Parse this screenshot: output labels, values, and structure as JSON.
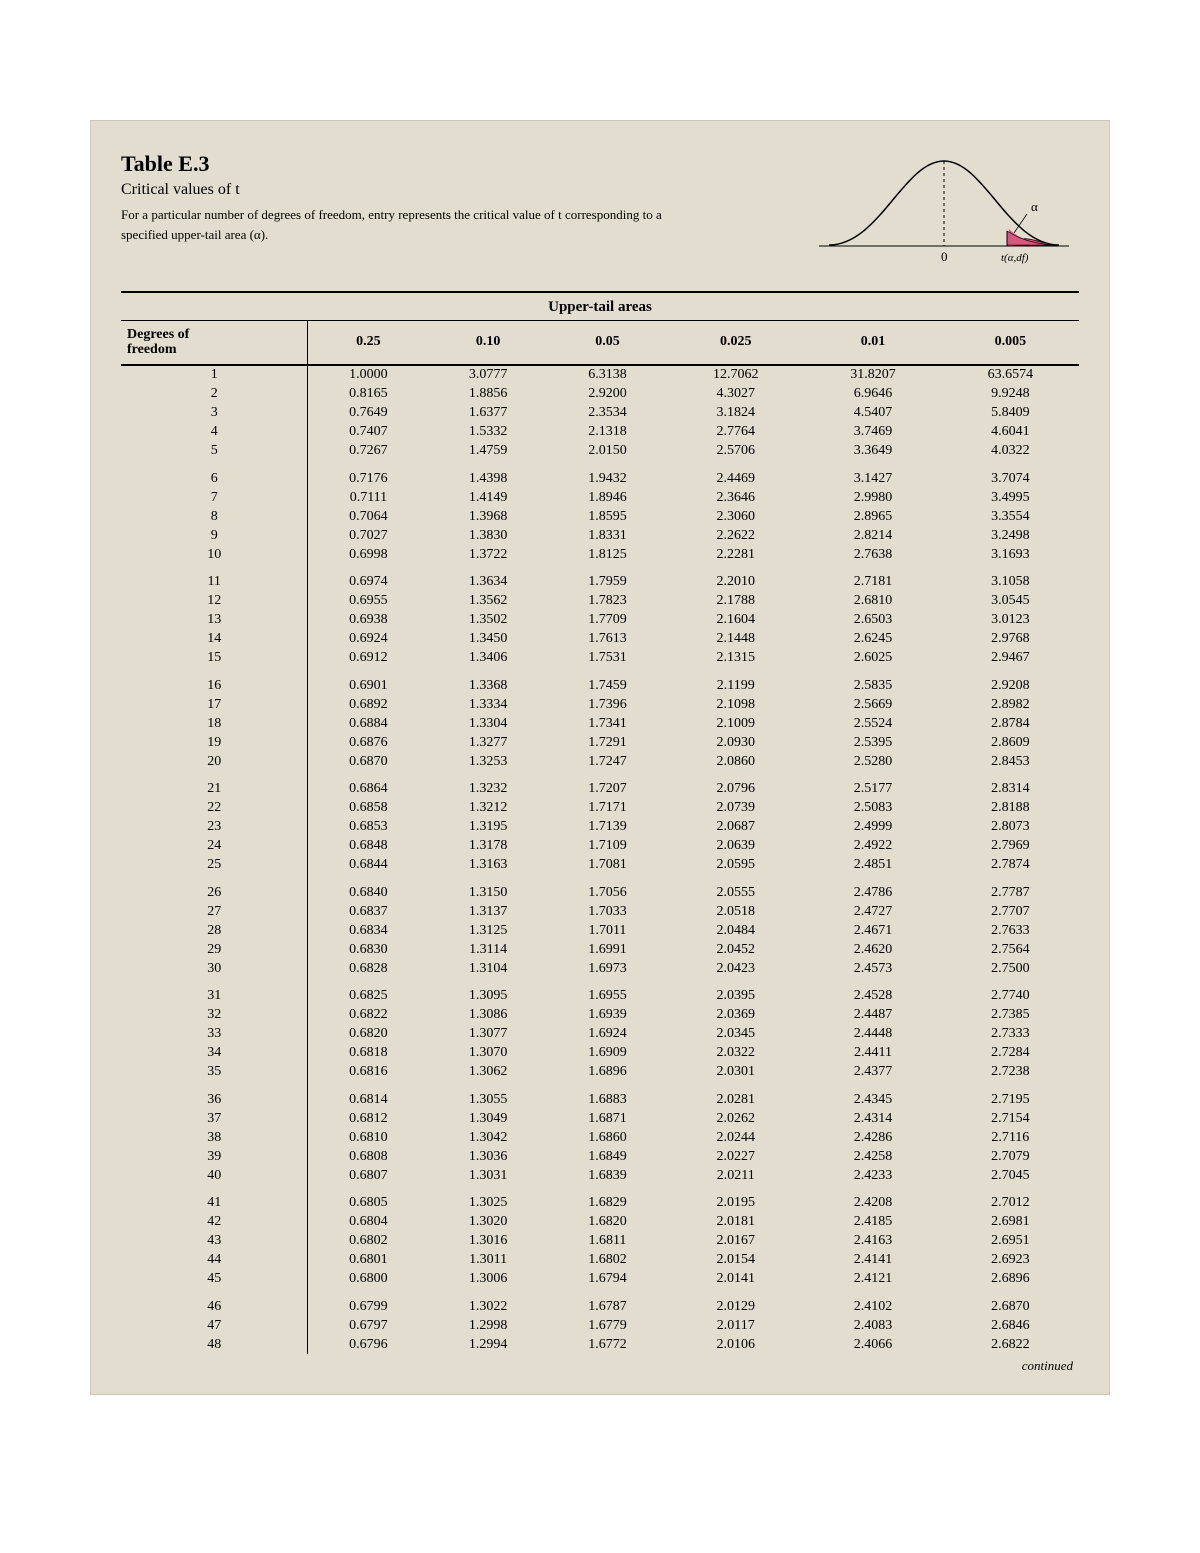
{
  "header": {
    "table_label": "Table E.3",
    "subtitle": "Critical values of t",
    "description": "For a particular number of degrees of freedom, entry represents the critical value of t corresponding to a specified upper-tail area (α).",
    "curve": {
      "alpha_label": "α",
      "zero_label": "0",
      "axis_label": "t(α,df)",
      "curve_color": "#000000",
      "fill_color": "#d6577f",
      "axis_color": "#000000",
      "alpha_line_color": "#000000"
    }
  },
  "table": {
    "section_title": "Upper-tail areas",
    "df_header": "Degrees of freedom",
    "columns": [
      "0.25",
      "0.10",
      "0.05",
      "0.025",
      "0.01",
      "0.005"
    ],
    "group_size": 5,
    "rows": [
      {
        "df": "1",
        "v": [
          "1.0000",
          "3.0777",
          "6.3138",
          "12.7062",
          "31.8207",
          "63.6574"
        ]
      },
      {
        "df": "2",
        "v": [
          "0.8165",
          "1.8856",
          "2.9200",
          "4.3027",
          "6.9646",
          "9.9248"
        ]
      },
      {
        "df": "3",
        "v": [
          "0.7649",
          "1.6377",
          "2.3534",
          "3.1824",
          "4.5407",
          "5.8409"
        ]
      },
      {
        "df": "4",
        "v": [
          "0.7407",
          "1.5332",
          "2.1318",
          "2.7764",
          "3.7469",
          "4.6041"
        ]
      },
      {
        "df": "5",
        "v": [
          "0.7267",
          "1.4759",
          "2.0150",
          "2.5706",
          "3.3649",
          "4.0322"
        ]
      },
      {
        "df": "6",
        "v": [
          "0.7176",
          "1.4398",
          "1.9432",
          "2.4469",
          "3.1427",
          "3.7074"
        ]
      },
      {
        "df": "7",
        "v": [
          "0.7111",
          "1.4149",
          "1.8946",
          "2.3646",
          "2.9980",
          "3.4995"
        ]
      },
      {
        "df": "8",
        "v": [
          "0.7064",
          "1.3968",
          "1.8595",
          "2.3060",
          "2.8965",
          "3.3554"
        ]
      },
      {
        "df": "9",
        "v": [
          "0.7027",
          "1.3830",
          "1.8331",
          "2.2622",
          "2.8214",
          "3.2498"
        ]
      },
      {
        "df": "10",
        "v": [
          "0.6998",
          "1.3722",
          "1.8125",
          "2.2281",
          "2.7638",
          "3.1693"
        ]
      },
      {
        "df": "11",
        "v": [
          "0.6974",
          "1.3634",
          "1.7959",
          "2.2010",
          "2.7181",
          "3.1058"
        ]
      },
      {
        "df": "12",
        "v": [
          "0.6955",
          "1.3562",
          "1.7823",
          "2.1788",
          "2.6810",
          "3.0545"
        ]
      },
      {
        "df": "13",
        "v": [
          "0.6938",
          "1.3502",
          "1.7709",
          "2.1604",
          "2.6503",
          "3.0123"
        ]
      },
      {
        "df": "14",
        "v": [
          "0.6924",
          "1.3450",
          "1.7613",
          "2.1448",
          "2.6245",
          "2.9768"
        ]
      },
      {
        "df": "15",
        "v": [
          "0.6912",
          "1.3406",
          "1.7531",
          "2.1315",
          "2.6025",
          "2.9467"
        ]
      },
      {
        "df": "16",
        "v": [
          "0.6901",
          "1.3368",
          "1.7459",
          "2.1199",
          "2.5835",
          "2.9208"
        ]
      },
      {
        "df": "17",
        "v": [
          "0.6892",
          "1.3334",
          "1.7396",
          "2.1098",
          "2.5669",
          "2.8982"
        ]
      },
      {
        "df": "18",
        "v": [
          "0.6884",
          "1.3304",
          "1.7341",
          "2.1009",
          "2.5524",
          "2.8784"
        ]
      },
      {
        "df": "19",
        "v": [
          "0.6876",
          "1.3277",
          "1.7291",
          "2.0930",
          "2.5395",
          "2.8609"
        ]
      },
      {
        "df": "20",
        "v": [
          "0.6870",
          "1.3253",
          "1.7247",
          "2.0860",
          "2.5280",
          "2.8453"
        ]
      },
      {
        "df": "21",
        "v": [
          "0.6864",
          "1.3232",
          "1.7207",
          "2.0796",
          "2.5177",
          "2.8314"
        ]
      },
      {
        "df": "22",
        "v": [
          "0.6858",
          "1.3212",
          "1.7171",
          "2.0739",
          "2.5083",
          "2.8188"
        ]
      },
      {
        "df": "23",
        "v": [
          "0.6853",
          "1.3195",
          "1.7139",
          "2.0687",
          "2.4999",
          "2.8073"
        ]
      },
      {
        "df": "24",
        "v": [
          "0.6848",
          "1.3178",
          "1.7109",
          "2.0639",
          "2.4922",
          "2.7969"
        ]
      },
      {
        "df": "25",
        "v": [
          "0.6844",
          "1.3163",
          "1.7081",
          "2.0595",
          "2.4851",
          "2.7874"
        ]
      },
      {
        "df": "26",
        "v": [
          "0.6840",
          "1.3150",
          "1.7056",
          "2.0555",
          "2.4786",
          "2.7787"
        ]
      },
      {
        "df": "27",
        "v": [
          "0.6837",
          "1.3137",
          "1.7033",
          "2.0518",
          "2.4727",
          "2.7707"
        ]
      },
      {
        "df": "28",
        "v": [
          "0.6834",
          "1.3125",
          "1.7011",
          "2.0484",
          "2.4671",
          "2.7633"
        ]
      },
      {
        "df": "29",
        "v": [
          "0.6830",
          "1.3114",
          "1.6991",
          "2.0452",
          "2.4620",
          "2.7564"
        ]
      },
      {
        "df": "30",
        "v": [
          "0.6828",
          "1.3104",
          "1.6973",
          "2.0423",
          "2.4573",
          "2.7500"
        ]
      },
      {
        "df": "31",
        "v": [
          "0.6825",
          "1.3095",
          "1.6955",
          "2.0395",
          "2.4528",
          "2.7740"
        ]
      },
      {
        "df": "32",
        "v": [
          "0.6822",
          "1.3086",
          "1.6939",
          "2.0369",
          "2.4487",
          "2.7385"
        ]
      },
      {
        "df": "33",
        "v": [
          "0.6820",
          "1.3077",
          "1.6924",
          "2.0345",
          "2.4448",
          "2.7333"
        ]
      },
      {
        "df": "34",
        "v": [
          "0.6818",
          "1.3070",
          "1.6909",
          "2.0322",
          "2.4411",
          "2.7284"
        ]
      },
      {
        "df": "35",
        "v": [
          "0.6816",
          "1.3062",
          "1.6896",
          "2.0301",
          "2.4377",
          "2.7238"
        ]
      },
      {
        "df": "36",
        "v": [
          "0.6814",
          "1.3055",
          "1.6883",
          "2.0281",
          "2.4345",
          "2.7195"
        ]
      },
      {
        "df": "37",
        "v": [
          "0.6812",
          "1.3049",
          "1.6871",
          "2.0262",
          "2.4314",
          "2.7154"
        ]
      },
      {
        "df": "38",
        "v": [
          "0.6810",
          "1.3042",
          "1.6860",
          "2.0244",
          "2.4286",
          "2.7116"
        ]
      },
      {
        "df": "39",
        "v": [
          "0.6808",
          "1.3036",
          "1.6849",
          "2.0227",
          "2.4258",
          "2.7079"
        ]
      },
      {
        "df": "40",
        "v": [
          "0.6807",
          "1.3031",
          "1.6839",
          "2.0211",
          "2.4233",
          "2.7045"
        ]
      },
      {
        "df": "41",
        "v": [
          "0.6805",
          "1.3025",
          "1.6829",
          "2.0195",
          "2.4208",
          "2.7012"
        ]
      },
      {
        "df": "42",
        "v": [
          "0.6804",
          "1.3020",
          "1.6820",
          "2.0181",
          "2.4185",
          "2.6981"
        ]
      },
      {
        "df": "43",
        "v": [
          "0.6802",
          "1.3016",
          "1.6811",
          "2.0167",
          "2.4163",
          "2.6951"
        ]
      },
      {
        "df": "44",
        "v": [
          "0.6801",
          "1.3011",
          "1.6802",
          "2.0154",
          "2.4141",
          "2.6923"
        ]
      },
      {
        "df": "45",
        "v": [
          "0.6800",
          "1.3006",
          "1.6794",
          "2.0141",
          "2.4121",
          "2.6896"
        ]
      },
      {
        "df": "46",
        "v": [
          "0.6799",
          "1.3022",
          "1.6787",
          "2.0129",
          "2.4102",
          "2.6870"
        ]
      },
      {
        "df": "47",
        "v": [
          "0.6797",
          "1.2998",
          "1.6779",
          "2.0117",
          "2.4083",
          "2.6846"
        ]
      },
      {
        "df": "48",
        "v": [
          "0.6796",
          "1.2994",
          "1.6772",
          "2.0106",
          "2.4066",
          "2.6822"
        ]
      }
    ],
    "continued_label": "continued"
  },
  "style": {
    "page_bg": "#ffffff",
    "panel_bg": "#e3ddd0",
    "panel_border": "#cfc7b6",
    "text_color": "#000000",
    "title_fontsize": 22,
    "subtitle_fontsize": 16,
    "desc_fontsize": 13,
    "table_fontsize": 14,
    "font_family": "Times New Roman"
  }
}
